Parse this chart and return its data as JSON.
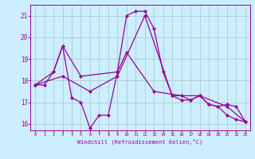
{
  "series": [
    {
      "x": [
        0,
        1,
        2,
        3,
        4,
        5,
        6,
        7,
        8,
        9,
        10,
        11,
        12,
        13,
        14,
        15,
        16,
        17,
        18,
        19,
        20,
        21,
        22,
        23
      ],
      "y": [
        17.8,
        17.8,
        18.4,
        19.6,
        17.2,
        17.0,
        15.8,
        16.4,
        16.4,
        18.4,
        21.0,
        21.2,
        21.2,
        20.4,
        18.4,
        17.3,
        17.1,
        17.1,
        17.3,
        16.9,
        16.8,
        16.4,
        16.2,
        16.1
      ]
    },
    {
      "x": [
        0,
        2,
        3,
        5,
        9,
        10,
        13,
        16,
        17,
        18,
        19,
        20,
        21,
        22,
        23
      ],
      "y": [
        17.8,
        18.4,
        19.6,
        18.2,
        18.4,
        19.3,
        17.5,
        17.3,
        17.1,
        17.3,
        16.9,
        16.8,
        16.9,
        16.8,
        16.1
      ]
    },
    {
      "x": [
        0,
        3,
        6,
        9,
        12,
        15,
        18,
        21,
        23
      ],
      "y": [
        17.8,
        18.2,
        17.5,
        18.2,
        21.0,
        17.3,
        17.3,
        16.8,
        16.1
      ]
    }
  ],
  "color": "#990099",
  "bg_color": "#cceeff",
  "grid_color": "#aacccc",
  "xlim": [
    -0.5,
    23.5
  ],
  "ylim": [
    15.7,
    21.5
  ],
  "yticks": [
    16,
    17,
    18,
    19,
    20,
    21
  ],
  "xticks": [
    0,
    1,
    2,
    3,
    4,
    5,
    6,
    7,
    8,
    9,
    10,
    11,
    12,
    13,
    14,
    15,
    16,
    17,
    18,
    19,
    20,
    21,
    22,
    23
  ],
  "xlabel": "Windchill (Refroidissement éolien,°C)",
  "marker": "D",
  "markersize": 2.0,
  "linewidth": 0.9
}
